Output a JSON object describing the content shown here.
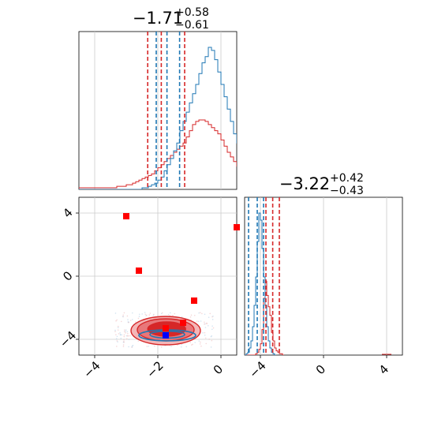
{
  "colors": {
    "blue": "#1f77b4",
    "red": "#d62728",
    "marker_red": "#ff0000",
    "marker_blue": "#0000ff",
    "grid": "#cccccc",
    "fill_outer": "#f4b6b7",
    "fill_mid": "#e8777a",
    "fill_inner": "#d62728"
  },
  "chart_data": [
    {
      "panel": "top-left",
      "type": "histogram",
      "title": {
        "main": "−1.71",
        "sup": "+0.58",
        "sub": "−0.61"
      },
      "xlim": [
        -4.5,
        0.5
      ],
      "grid": true,
      "blue_quantiles": [
        -2.05,
        -1.71,
        -1.31
      ],
      "red_quantiles": [
        -2.32,
        -1.89,
        -1.15
      ],
      "blue_hist": {
        "bin_start": -4.5,
        "bin_width": 0.1,
        "counts": [
          0,
          0,
          0,
          0,
          0,
          0,
          0,
          0,
          0,
          0,
          0,
          0,
          0,
          0,
          0,
          0,
          0,
          0,
          0,
          0,
          1,
          1,
          2,
          3,
          4,
          6,
          8,
          12,
          16,
          20,
          25,
          30,
          38,
          44,
          50,
          56,
          62,
          68,
          75,
          82,
          86,
          92,
          90,
          84,
          76,
          68,
          60,
          52,
          44,
          36,
          30,
          24,
          18,
          14,
          10,
          7,
          5,
          3,
          2,
          1,
          1,
          0,
          0,
          0,
          0,
          0,
          0,
          0,
          0,
          0
        ]
      },
      "red_hist": {
        "bin_start": -4.5,
        "bin_width": 0.1,
        "counts": [
          1,
          1,
          1,
          1,
          1,
          1,
          1,
          1,
          1,
          1,
          1,
          1,
          2,
          2,
          2,
          3,
          3,
          4,
          5,
          6,
          7,
          8,
          9,
          10,
          12,
          14,
          16,
          18,
          20,
          22,
          24,
          26,
          28,
          30,
          34,
          38,
          42,
          44,
          45,
          45,
          44,
          42,
          40,
          38,
          36,
          32,
          28,
          24,
          21,
          18,
          15,
          13,
          11,
          9,
          8,
          7,
          6,
          5,
          4,
          3,
          3,
          2,
          2,
          1,
          1,
          1,
          1,
          1,
          1,
          1
        ]
      }
    },
    {
      "panel": "bottom-right",
      "type": "histogram",
      "title": {
        "main": "−3.22",
        "sup": "+0.42",
        "sub": "−0.43"
      },
      "xlim": [
        -5.0,
        5.0
      ],
      "x_ticks": [
        "−4",
        "0",
        "4"
      ],
      "grid": true,
      "blue_quantiles": [
        -4.75,
        -4.2,
        -3.8
      ],
      "red_quantiles": [
        -3.65,
        -3.22,
        -2.8
      ],
      "blue_hist": {
        "bin_start": -5.0,
        "bin_width": 0.1,
        "counts": [
          0,
          1,
          2,
          5,
          10,
          20,
          35,
          55,
          80,
          100,
          95,
          75,
          55,
          35,
          20,
          10,
          5,
          2,
          1,
          0
        ]
      },
      "red_hist": {
        "bin_start": -5.0,
        "bin_width": 0.1,
        "counts": [
          0,
          0,
          0,
          0,
          0,
          0,
          0,
          1,
          2,
          4,
          8,
          18,
          40,
          52,
          42,
          34,
          28,
          16,
          10,
          5,
          3,
          2,
          1,
          1,
          0
        ]
      }
    },
    {
      "panel": "bottom-left",
      "type": "scatter",
      "xlim": [
        -4.5,
        0.5
      ],
      "ylim": [
        -5.0,
        5.0
      ],
      "x_ticks": [
        "−4",
        "−2",
        "0"
      ],
      "y_ticks": [
        "−4",
        "0",
        "4"
      ],
      "grid": true,
      "red_markers": [
        {
          "x": -3.0,
          "y": 3.8
        },
        {
          "x": 0.5,
          "y": 3.1
        },
        {
          "x": -2.6,
          "y": 0.35
        },
        {
          "x": -0.85,
          "y": -1.55
        },
        {
          "x": -1.2,
          "y": -2.95
        },
        {
          "x": -1.75,
          "y": -3.3
        }
      ],
      "blue_markers": [
        {
          "x": -1.75,
          "y": -3.75
        }
      ],
      "red_contours": [
        {
          "cx": -1.75,
          "cy": -3.45,
          "rx": 1.1,
          "ry": 0.9,
          "fill": "fill_outer"
        },
        {
          "cx": -1.75,
          "cy": -3.4,
          "rx": 0.9,
          "ry": 0.7,
          "fill": "fill_mid"
        },
        {
          "cx": -1.72,
          "cy": -3.35,
          "rx": 0.6,
          "ry": 0.45,
          "fill": "fill_inner"
        }
      ],
      "blue_contours": [
        {
          "cx": -1.7,
          "cy": -3.75,
          "rx": 0.9,
          "ry": 0.35
        },
        {
          "cx": -1.7,
          "cy": -3.7,
          "rx": 0.55,
          "ry": 0.22
        }
      ]
    }
  ]
}
